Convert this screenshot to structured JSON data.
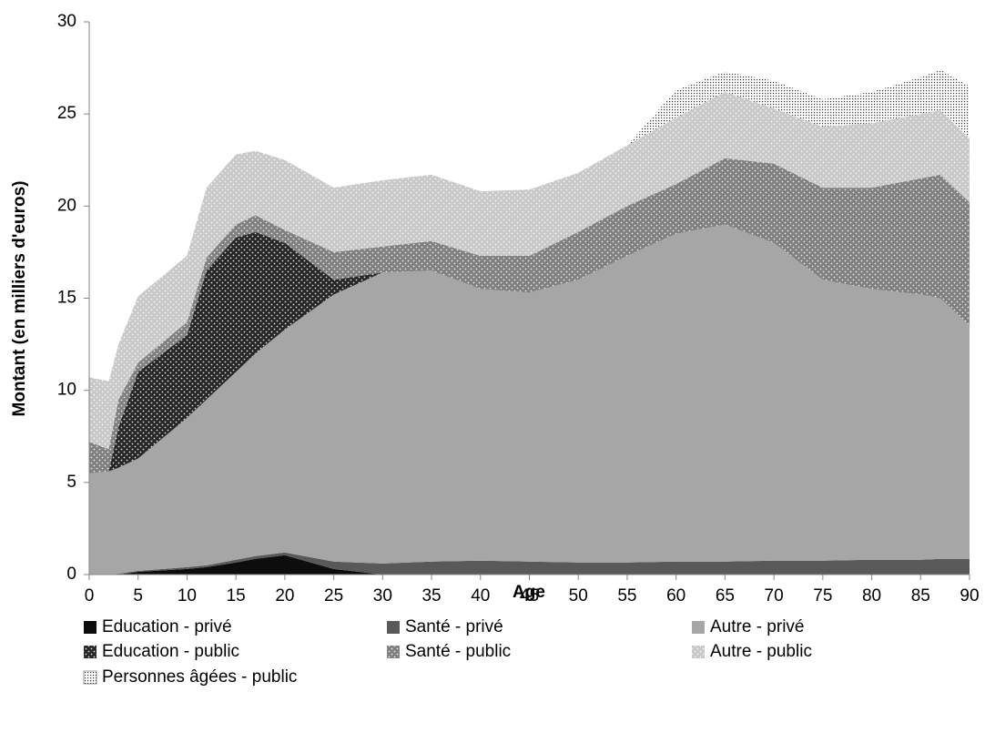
{
  "chart_data": {
    "type": "stacked-area",
    "x_label": "Age",
    "y_label": "Montant (en milliers d'euros)",
    "x": [
      0,
      2,
      3,
      5,
      10,
      12,
      15,
      17,
      20,
      25,
      30,
      35,
      40,
      45,
      50,
      55,
      60,
      65,
      70,
      75,
      80,
      85,
      87,
      90
    ],
    "xlim": [
      0,
      90
    ],
    "xticks": [
      0,
      5,
      10,
      15,
      20,
      25,
      30,
      35,
      40,
      45,
      50,
      55,
      60,
      65,
      70,
      75,
      80,
      85,
      90
    ],
    "ylim": [
      0,
      30
    ],
    "yticks": [
      0,
      5,
      10,
      15,
      20,
      25,
      30
    ],
    "series": [
      {
        "name": "Education - privé",
        "color": "#0d0d0d",
        "pattern": "solid",
        "values": [
          0,
          0,
          0,
          0.15,
          0.3,
          0.4,
          0.65,
          0.85,
          1.05,
          0.3,
          0,
          0,
          0,
          0,
          0,
          0,
          0,
          0,
          0,
          0,
          0,
          0,
          0,
          0
        ]
      },
      {
        "name": "Santé - privé",
        "color": "#595959",
        "pattern": "solid",
        "values": [
          0,
          0,
          0.05,
          0.05,
          0.1,
          0.1,
          0.15,
          0.15,
          0.15,
          0.4,
          0.6,
          0.7,
          0.75,
          0.7,
          0.65,
          0.65,
          0.7,
          0.7,
          0.75,
          0.75,
          0.8,
          0.8,
          0.85,
          0.85
        ]
      },
      {
        "name": "Autre - privé",
        "color": "#a6a6a6",
        "pattern": "solid",
        "values": [
          5.5,
          5.6,
          5.75,
          6.1,
          8.1,
          9.0,
          10.2,
          11.0,
          12.1,
          14.5,
          15.8,
          15.8,
          14.75,
          14.6,
          15.35,
          16.65,
          17.8,
          18.3,
          17.25,
          15.25,
          14.7,
          14.4,
          14.15,
          12.65
        ]
      },
      {
        "name": "Education - public",
        "color": "#262626",
        "pattern": "dots",
        "values": [
          0,
          0,
          2.2,
          4.7,
          4.5,
          7.0,
          7.3,
          6.6,
          4.7,
          0.8,
          0,
          0,
          0,
          0,
          0,
          0,
          0,
          0,
          0,
          0,
          0,
          0,
          0,
          0
        ]
      },
      {
        "name": "Santé - public",
        "color": "#7f7f7f",
        "pattern": "dots",
        "values": [
          1.7,
          1.2,
          1.5,
          0.5,
          0.7,
          0.7,
          0.7,
          0.9,
          0.7,
          1.5,
          1.4,
          1.6,
          1.8,
          2.0,
          2.6,
          2.7,
          2.7,
          3.6,
          4.3,
          5.0,
          5.5,
          6.3,
          6.7,
          6.7
        ]
      },
      {
        "name": "Autre - public",
        "color": "#c8c8c8",
        "pattern": "dots",
        "values": [
          3.5,
          3.7,
          3.0,
          3.6,
          3.6,
          3.8,
          3.8,
          3.5,
          3.8,
          3.5,
          3.6,
          3.6,
          3.5,
          3.6,
          3.2,
          3.3,
          3.6,
          3.6,
          3.0,
          3.3,
          3.5,
          3.5,
          3.5,
          3.5
        ]
      },
      {
        "name": "Personnes âgées - public",
        "color": "#ffffff",
        "pattern": "dense",
        "values": [
          0,
          0,
          0,
          0,
          0,
          0,
          0,
          0,
          0,
          0,
          0,
          0,
          0,
          0,
          0,
          0,
          1.5,
          1.1,
          1.5,
          1.5,
          1.7,
          2.0,
          2.2,
          2.8
        ]
      }
    ]
  }
}
